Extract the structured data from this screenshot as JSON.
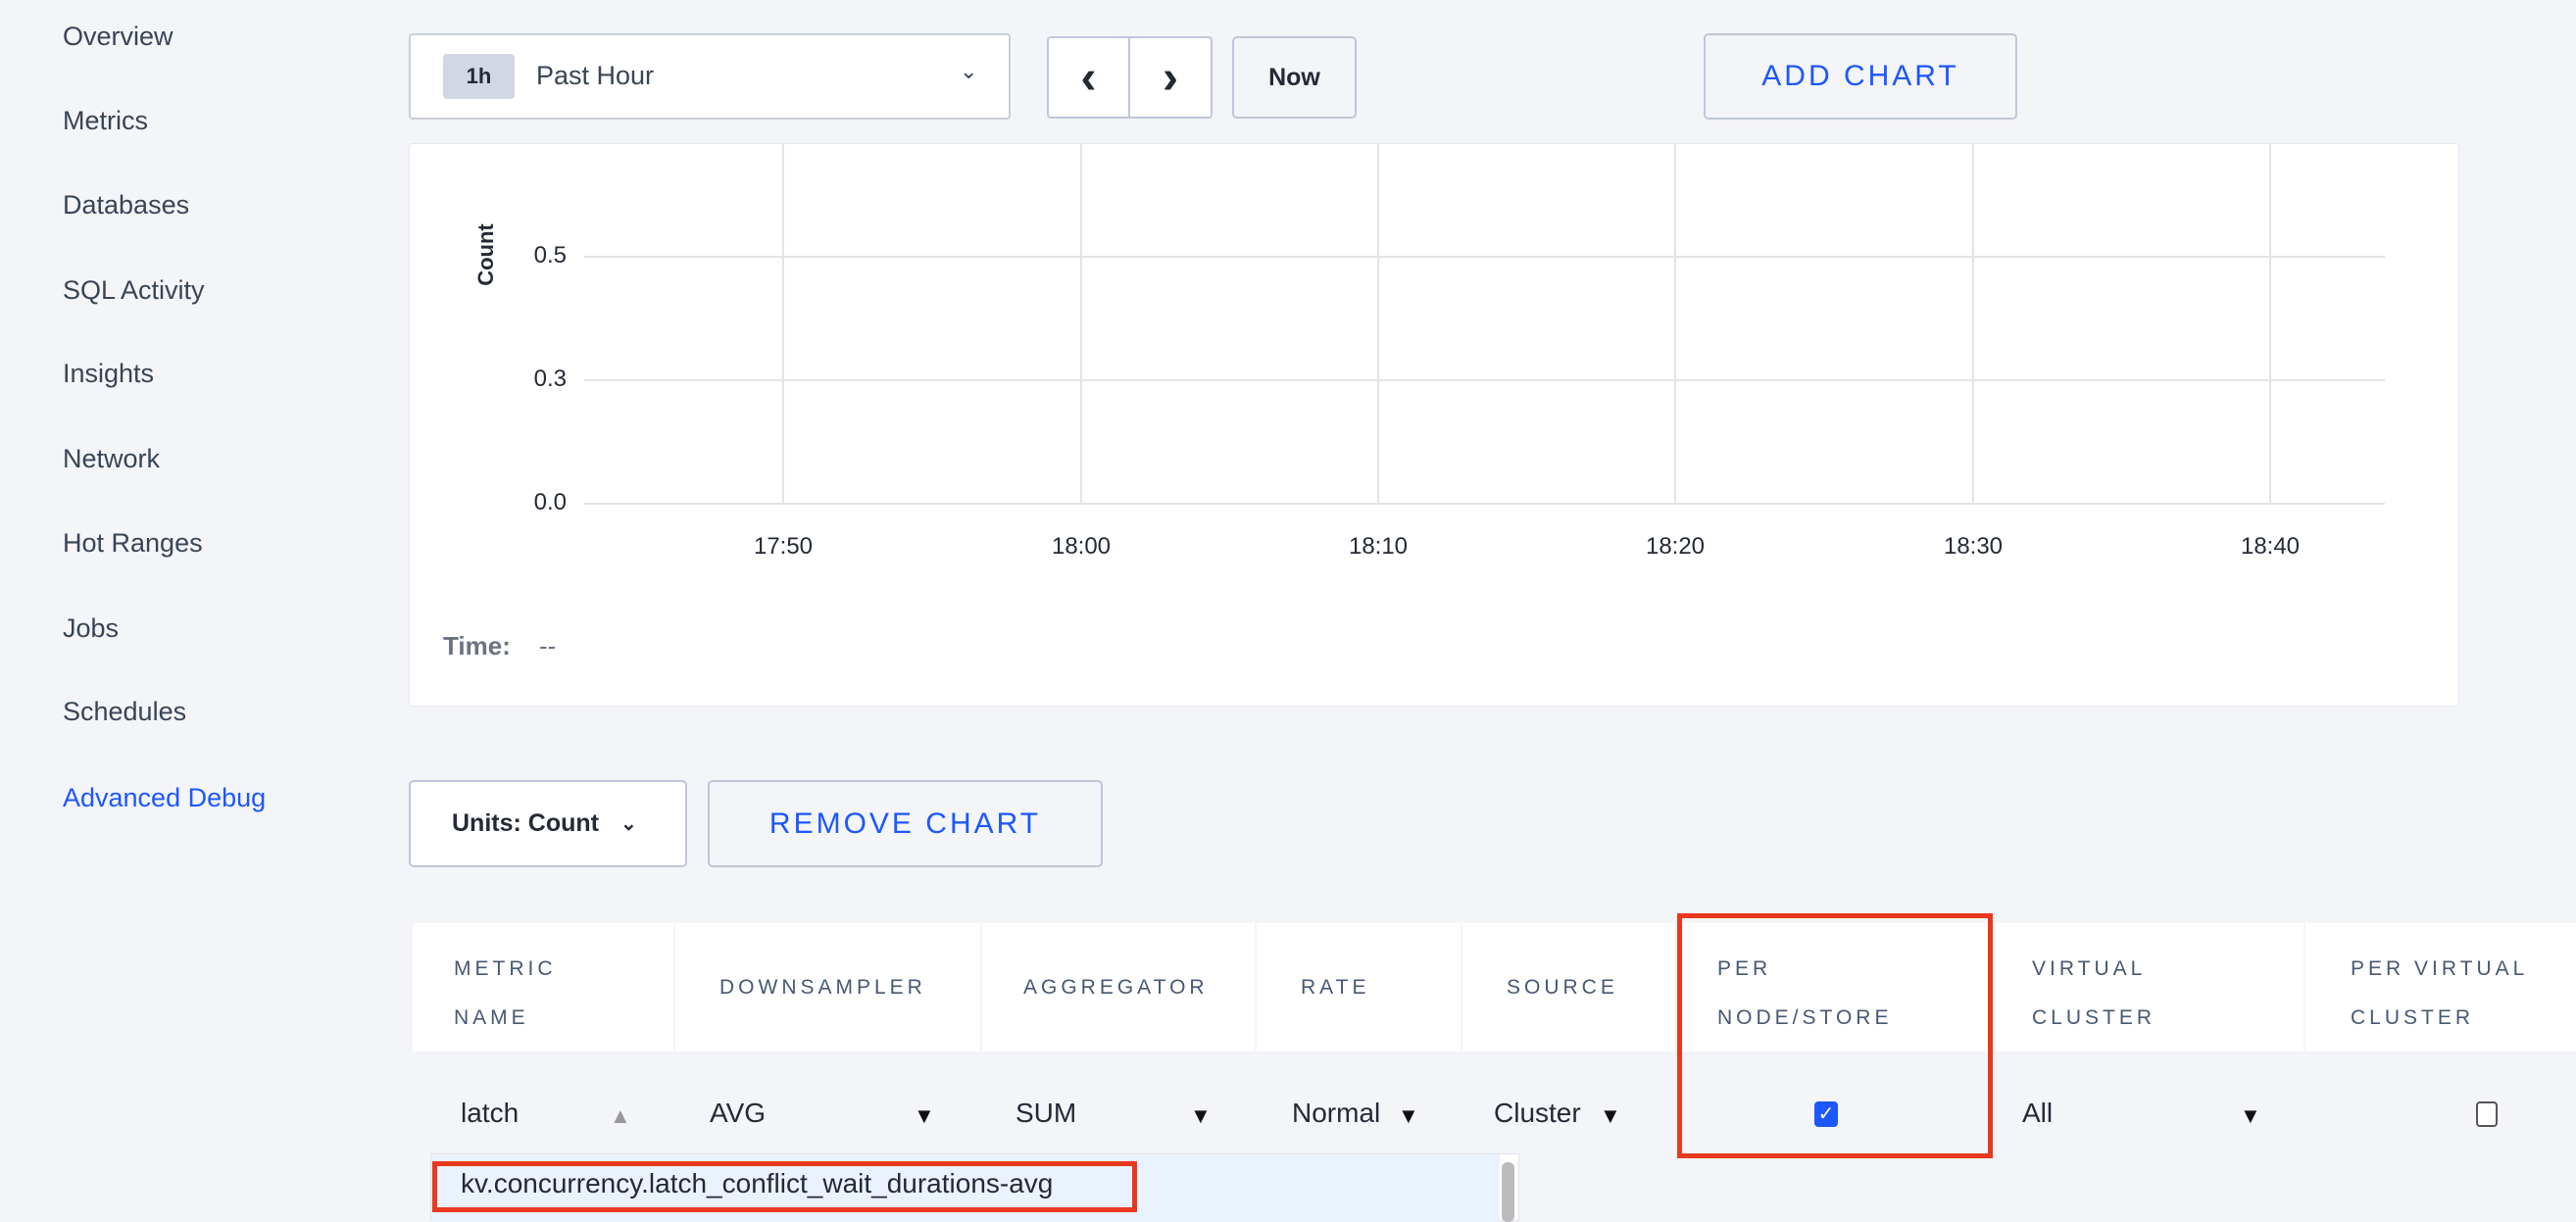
{
  "sidebar": {
    "items": [
      {
        "label": "Overview"
      },
      {
        "label": "Metrics"
      },
      {
        "label": "Databases"
      },
      {
        "label": "SQL Activity"
      },
      {
        "label": "Insights"
      },
      {
        "label": "Network"
      },
      {
        "label": "Hot Ranges"
      },
      {
        "label": "Jobs"
      },
      {
        "label": "Schedules"
      },
      {
        "label": "Advanced Debug",
        "active": true
      }
    ]
  },
  "toolbar": {
    "time_badge": "1h",
    "time_label": "Past Hour",
    "prev": "‹",
    "next": "›",
    "now": "Now",
    "add_chart": "ADD CHART"
  },
  "chart_data": {
    "type": "line",
    "ylabel": "Count",
    "xlabel": "",
    "yticks": [
      "0.5",
      "0.3",
      "0.0"
    ],
    "xticks": [
      "17:50",
      "18:00",
      "18:10",
      "18:20",
      "18:30",
      "18:40"
    ],
    "series": [],
    "grid": true
  },
  "chart_footer": {
    "time_label": "Time:",
    "time_value": "--"
  },
  "controls": {
    "units": "Units: Count",
    "remove_chart": "REMOVE CHART"
  },
  "table": {
    "headers": [
      [
        "METRIC",
        "NAME"
      ],
      [
        "DOWNSAMPLER"
      ],
      [
        "AGGREGATOR"
      ],
      [
        "RATE"
      ],
      [
        "SOURCE"
      ],
      [
        "PER",
        "NODE/STORE"
      ],
      [
        "VIRTUAL",
        "CLUSTER"
      ],
      [
        "PER VIRTUAL",
        "CLUSTER"
      ]
    ],
    "row": {
      "metric": "latch",
      "downsampler": "AVG",
      "aggregator": "SUM",
      "rate": "Normal",
      "source": "Cluster",
      "per_node_store": true,
      "virtual_cluster": "All",
      "per_virtual_cluster": false
    }
  },
  "autocomplete": {
    "options": [
      "kv.concurrency.latch_conflict_wait_durations-avg"
    ]
  },
  "colors": {
    "accent": "#1c57ff",
    "highlight": "#e8391f"
  }
}
